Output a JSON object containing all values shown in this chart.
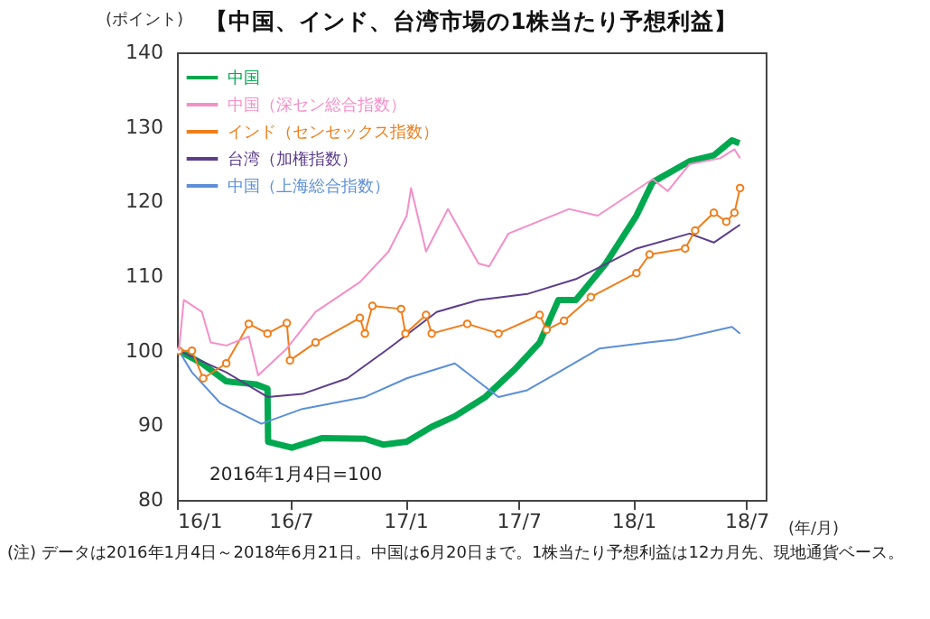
{
  "chart_data": {
    "type": "line",
    "title": "【中国、インド、台湾市場の1株当たり予想利益】",
    "ylabel": "(ポイント)",
    "xlabel": "(年/月)",
    "xlim": [
      "2016-01",
      "2018-08"
    ],
    "xticks": [
      {
        "value": "2016-01",
        "label": "16/1"
      },
      {
        "value": "2016-07",
        "label": "16/7"
      },
      {
        "value": "2017-01",
        "label": "17/1"
      },
      {
        "value": "2017-07",
        "label": "17/7"
      },
      {
        "value": "2018-01",
        "label": "18/1"
      },
      {
        "value": "2018-07",
        "label": "18/7"
      }
    ],
    "ylim": [
      80,
      140
    ],
    "yticks": [
      80,
      90,
      100,
      110,
      120,
      130,
      140
    ],
    "grid": false,
    "legend": "top left",
    "line_style": "solid",
    "series": [
      {
        "name": "中国",
        "color": "#00a84f",
        "marker": "none",
        "x": [
          "2016-01-04",
          "2016-02-10",
          "2016-03-20",
          "2016-05-06",
          "2016-05-25",
          "2016-05-26",
          "2016-07-03",
          "2016-08-21",
          "2016-10-28",
          "2016-11-27",
          "2017-01-03",
          "2017-02-12",
          "2017-03-21",
          "2017-05-09",
          "2017-06-25",
          "2017-08-04",
          "2017-09-03",
          "2017-10-01",
          "2017-11-18",
          "2018-01-06",
          "2018-02-01",
          "2018-04-01",
          "2018-05-10",
          "2018-06-08",
          "2018-06-20"
        ],
        "values": [
          100,
          98.3,
          95.9,
          95.5,
          94.9,
          87.8,
          87.0,
          88.3,
          88.2,
          87.4,
          87.8,
          89.8,
          91.2,
          93.8,
          97.5,
          101.1,
          106.8,
          106.8,
          111.7,
          118.1,
          122.6,
          125.4,
          126.2,
          128.2,
          127.8
        ]
      },
      {
        "name": "中国（深セン総合指数）",
        "color": "#f48fc8",
        "marker": "none",
        "x": [
          "2016-01-04",
          "2016-01-12",
          "2016-02-10",
          "2016-02-24",
          "2016-03-20",
          "2016-04-25",
          "2016-05-10",
          "2016-06-25",
          "2016-08-10",
          "2016-10-20",
          "2016-12-05",
          "2017-01-03",
          "2017-01-10",
          "2017-02-03",
          "2017-03-10",
          "2017-04-28",
          "2017-05-15",
          "2017-06-15",
          "2017-09-20",
          "2017-11-05",
          "2018-02-01",
          "2018-02-25",
          "2018-04-01",
          "2018-05-20",
          "2018-06-12",
          "2018-06-21"
        ],
        "values": [
          100,
          106.8,
          105.2,
          101.1,
          100.7,
          101.9,
          96.7,
          100.3,
          105.2,
          109.2,
          113.3,
          118.1,
          121.8,
          113.3,
          119,
          111.7,
          111.3,
          115.7,
          119,
          118.1,
          123,
          121.4,
          125,
          125.8,
          127,
          125.8
        ]
      },
      {
        "name": "インド（センセックス指数）",
        "color": "#f07d1a",
        "marker": "circle",
        "x": [
          "2016-01-04",
          "2016-01-25",
          "2016-02-12",
          "2016-03-20",
          "2016-04-25",
          "2016-05-25",
          "2016-06-25",
          "2016-06-30",
          "2016-08-10",
          "2016-10-20",
          "2016-10-28",
          "2016-11-09",
          "2016-12-25",
          "2017-01-01",
          "2017-02-03",
          "2017-02-12",
          "2017-04-10",
          "2017-05-30",
          "2017-08-04",
          "2017-08-15",
          "2017-09-12",
          "2017-10-25",
          "2018-01-06",
          "2018-01-27",
          "2018-03-25",
          "2018-04-10",
          "2018-05-10",
          "2018-05-30",
          "2018-06-12",
          "2018-06-21"
        ],
        "values": [
          100,
          100,
          96.3,
          98.3,
          103.6,
          102.3,
          103.7,
          98.7,
          101.1,
          104.4,
          102.3,
          106,
          105.6,
          102.3,
          104.8,
          102.3,
          103.6,
          102.3,
          104.8,
          102.8,
          104,
          107.2,
          110.4,
          112.9,
          113.7,
          116.1,
          118.5,
          117.3,
          118.5,
          121.8
        ]
      },
      {
        "name": "台湾（加権指数）",
        "color": "#5c3d8a",
        "marker": "none",
        "x": [
          "2016-01-04",
          "2016-03-20",
          "2016-05-25",
          "2016-07-20",
          "2016-09-30",
          "2016-12-05",
          "2017-02-20",
          "2017-04-28",
          "2017-07-15",
          "2017-10-01",
          "2018-01-06",
          "2018-04-01",
          "2018-05-10",
          "2018-06-21"
        ],
        "values": [
          100,
          97.1,
          93.8,
          94.2,
          96.3,
          100.3,
          105.2,
          106.8,
          107.6,
          109.6,
          113.7,
          115.7,
          114.5,
          116.9
        ]
      },
      {
        "name": "中国（上海総合指数）",
        "color": "#5b8fd8",
        "marker": "none",
        "x": [
          "2016-01-04",
          "2016-01-25",
          "2016-03-10",
          "2016-05-15",
          "2016-07-20",
          "2016-10-28",
          "2017-01-03",
          "2017-03-21",
          "2017-05-30",
          "2017-07-15",
          "2017-09-03",
          "2017-11-08",
          "2018-01-25",
          "2018-03-10",
          "2018-06-08",
          "2018-06-21"
        ],
        "values": [
          100,
          97.1,
          93,
          90.2,
          92.2,
          93.8,
          96.3,
          98.3,
          93.8,
          94.7,
          97.1,
          100.3,
          101.1,
          101.5,
          103.2,
          102.3
        ]
      }
    ],
    "annotations": [
      "2016年1月4日=100",
      "(注) データは2016年1月4日～2018年6月21日。中国は6月20日まで。1株当たり予想利益は12カ月先、現地通貨ベース。"
    ]
  }
}
